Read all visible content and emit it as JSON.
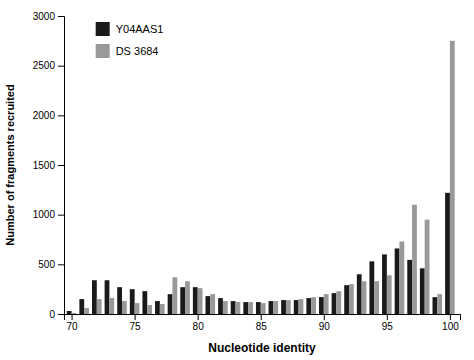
{
  "chart_data": {
    "type": "bar",
    "xlabel": "Nucleotide identity",
    "ylabel": "Number of fragments recruited",
    "x": [
      70,
      71,
      72,
      73,
      74,
      75,
      76,
      77,
      78,
      79,
      80,
      81,
      82,
      83,
      84,
      85,
      86,
      87,
      88,
      89,
      90,
      91,
      92,
      93,
      94,
      95,
      96,
      97,
      98,
      99,
      100
    ],
    "series": [
      {
        "name": "Y04AAS1",
        "color": "#1a1a1a",
        "values": [
          30,
          150,
          340,
          340,
          270,
          250,
          230,
          130,
          200,
          270,
          270,
          180,
          160,
          130,
          120,
          120,
          130,
          140,
          140,
          160,
          170,
          210,
          290,
          400,
          530,
          600,
          660,
          545,
          460,
          170,
          1220
        ]
      },
      {
        "name": "DS 3684",
        "color": "#999999",
        "values": [
          10,
          60,
          150,
          160,
          130,
          110,
          90,
          100,
          370,
          330,
          260,
          200,
          130,
          120,
          120,
          110,
          130,
          140,
          150,
          170,
          200,
          230,
          300,
          330,
          330,
          390,
          730,
          1100,
          950,
          200,
          2750
        ]
      }
    ],
    "xlim": [
      69.4,
      100.8
    ],
    "xticks": [
      70,
      75,
      80,
      85,
      90,
      95,
      100
    ],
    "ylim": [
      0,
      3000
    ],
    "yticks": [
      0,
      500,
      1000,
      1500,
      2000,
      2500,
      3000
    ],
    "grid": false,
    "legend": "upper left"
  }
}
